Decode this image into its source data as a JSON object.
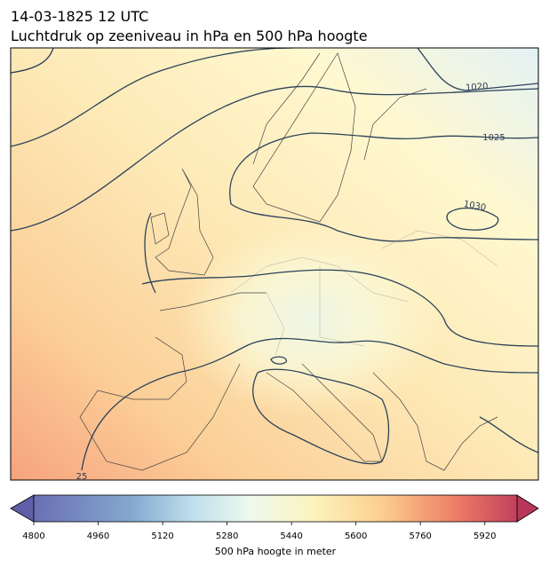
{
  "title": "14-03-1825 12 UTC",
  "subtitle": "Luchtdruk op zeeniveau in hPa en 500 hPa hoogte",
  "map": {
    "isobar_labels": [
      "1020",
      "1025",
      "1030",
      "25"
    ]
  },
  "colorbar": {
    "label": "500 hPa hoogte in meter",
    "lim": [
      4800,
      6000
    ],
    "ticks": [
      4800,
      4960,
      5120,
      5280,
      5440,
      5600,
      5760,
      5920
    ]
  }
}
